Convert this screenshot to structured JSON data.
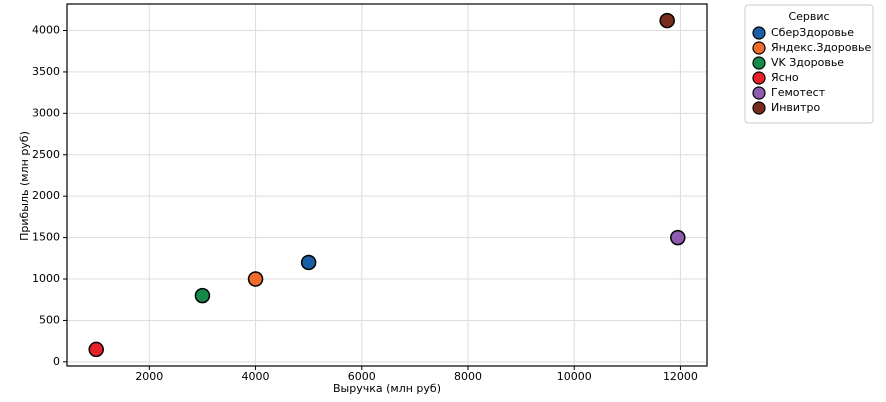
{
  "chart_data": {
    "type": "scatter",
    "x_label": "Выручка (млн руб)",
    "y_label": "Прибыль (млн руб)",
    "legend_title": "Сервис",
    "legend_position": "outside-upper-right",
    "grid": true,
    "xlim": [
      450,
      12500
    ],
    "ylim": [
      -50,
      4320
    ],
    "xticks": [
      2000,
      4000,
      6000,
      8000,
      10000,
      12000
    ],
    "yticks": [
      0,
      500,
      1000,
      1500,
      2000,
      2500,
      3000,
      3500,
      4000
    ],
    "series": [
      {
        "name": "СберЗдоровье",
        "color": "#1a5fa5",
        "x": [
          5000
        ],
        "values": [
          1200
        ]
      },
      {
        "name": "Яндекс.Здоровье",
        "color": "#f26b2a",
        "x": [
          4000
        ],
        "values": [
          1000
        ]
      },
      {
        "name": "VK Здоровье",
        "color": "#138a4a",
        "x": [
          3000
        ],
        "values": [
          800
        ]
      },
      {
        "name": "Ясно",
        "color": "#e8202a",
        "x": [
          1000
        ],
        "values": [
          150
        ]
      },
      {
        "name": "Гемотест",
        "color": "#8e5bb0",
        "x": [
          11950
        ],
        "values": [
          1500
        ]
      },
      {
        "name": "Инвитро",
        "color": "#7a2b1e",
        "x": [
          11750
        ],
        "values": [
          4120
        ]
      }
    ]
  }
}
